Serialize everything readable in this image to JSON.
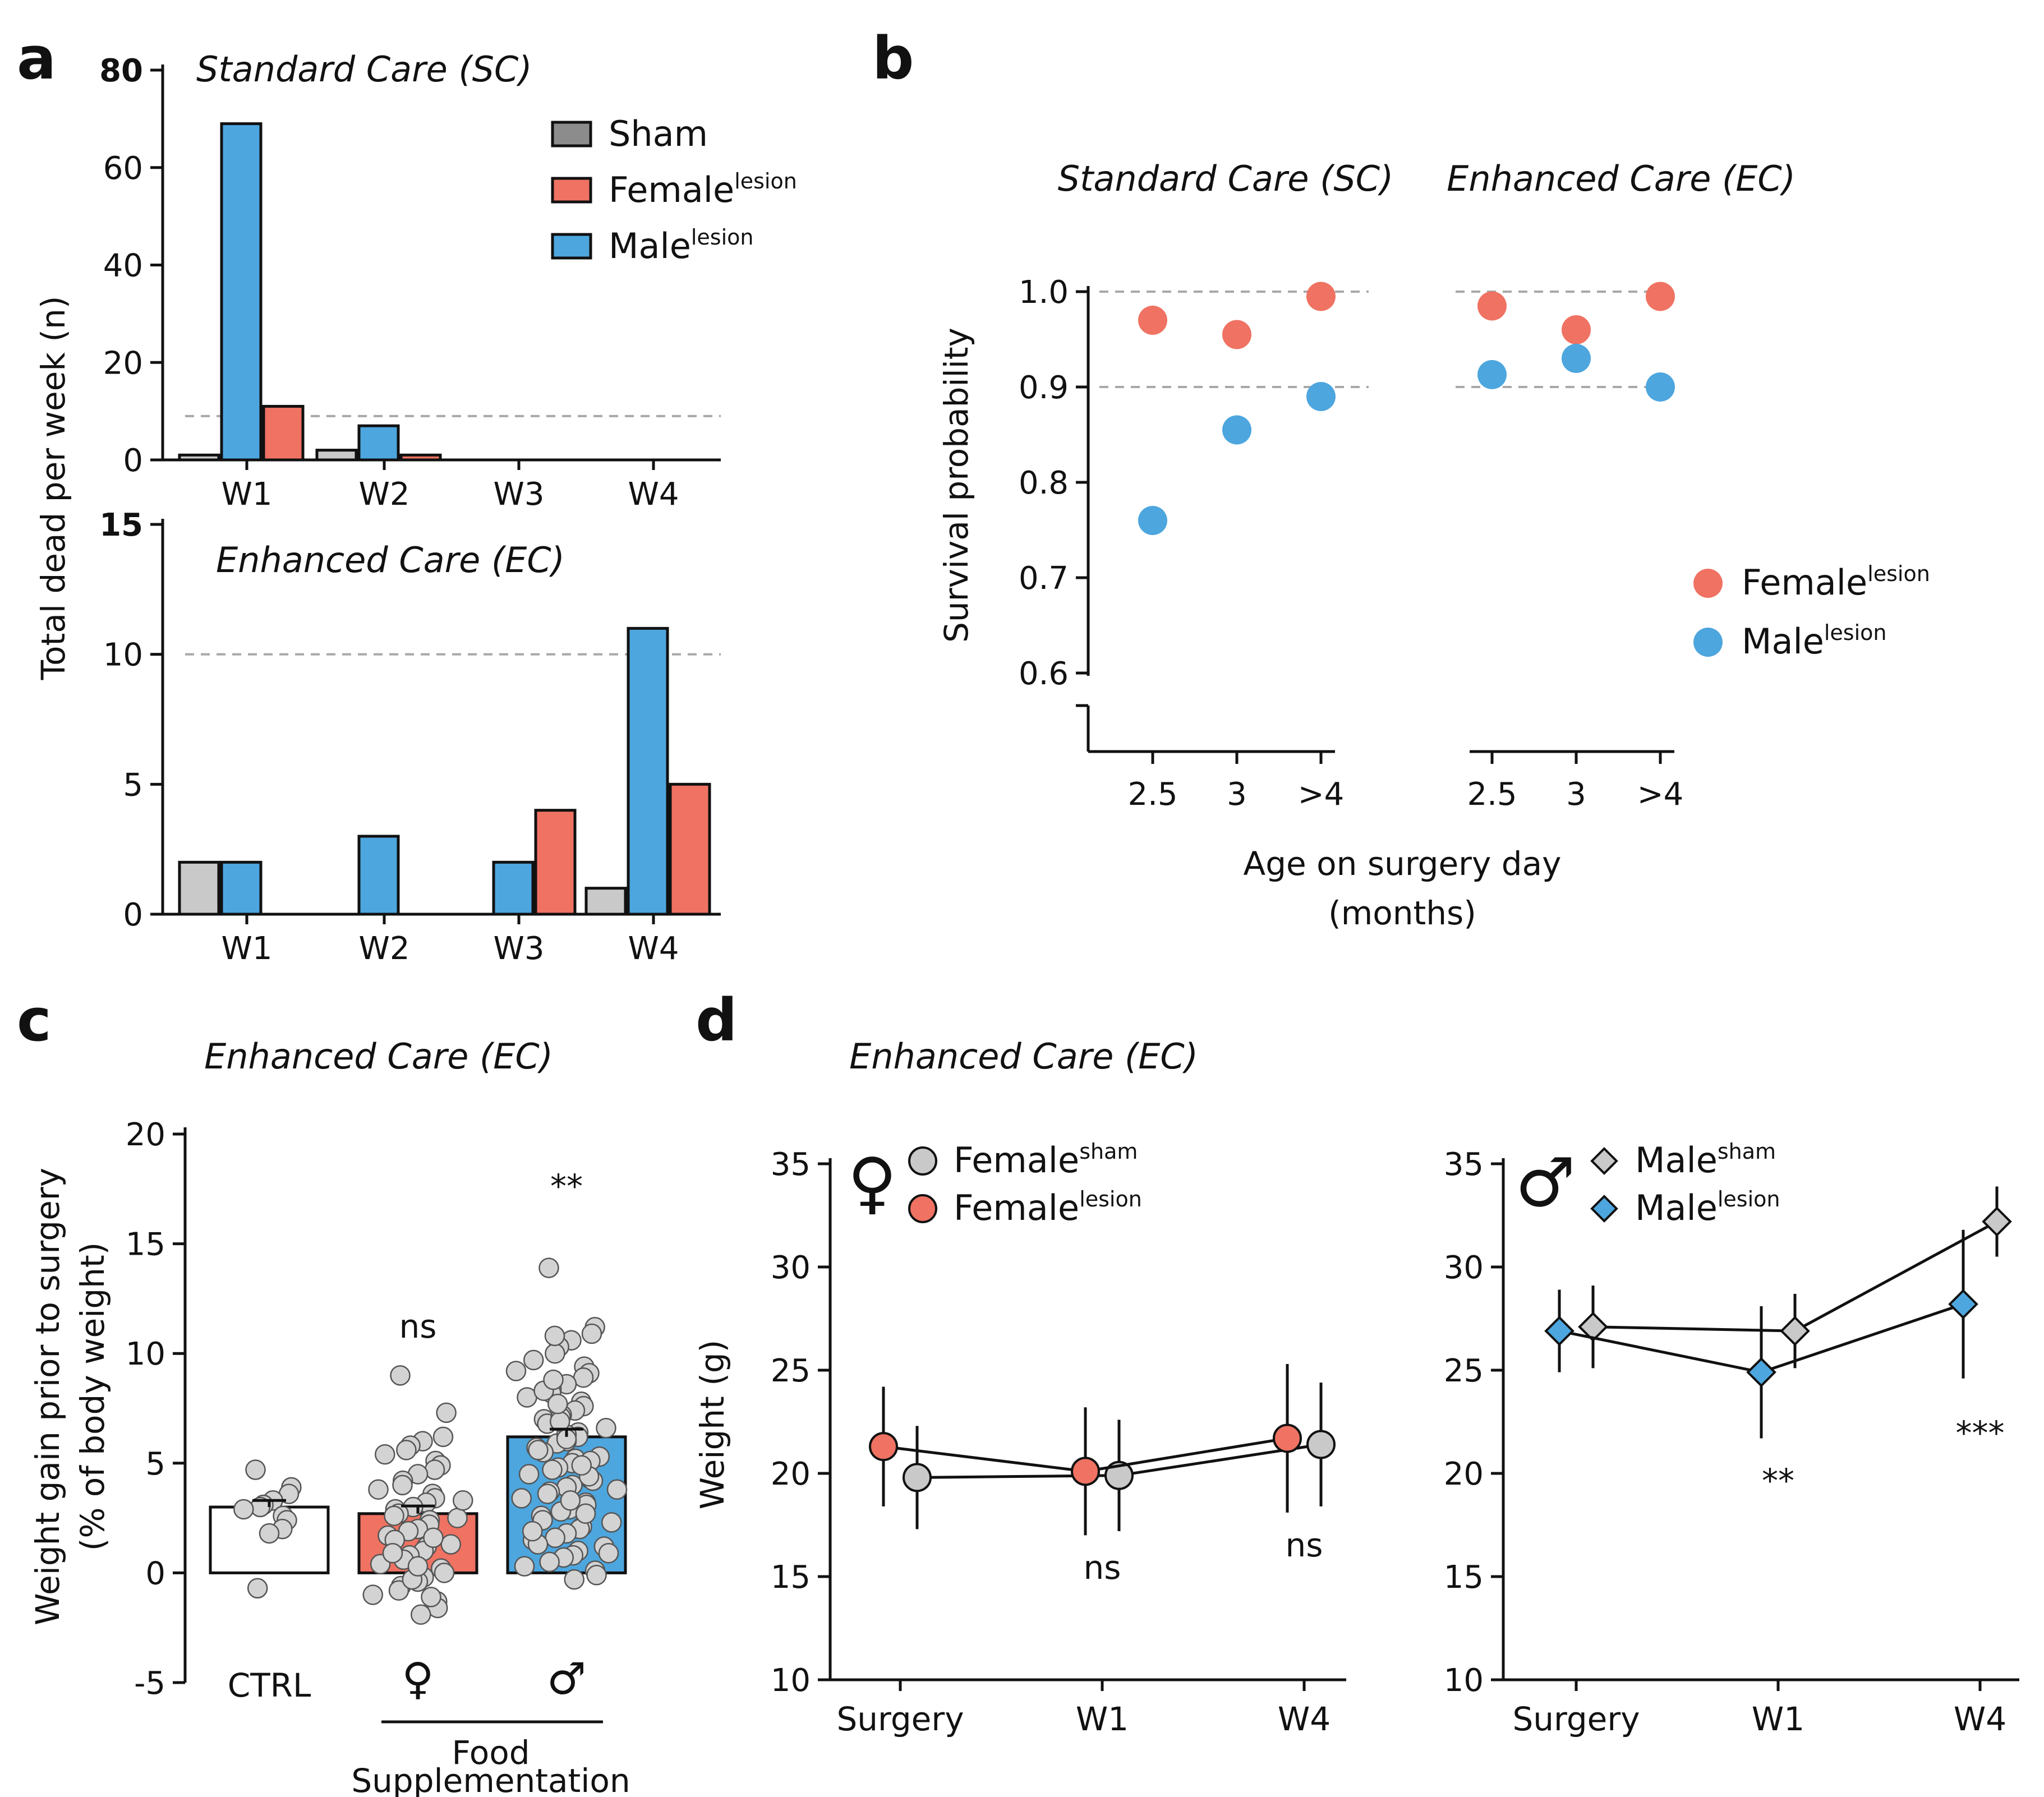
{
  "colors": {
    "sham": "#c9c9c9",
    "female": "#ef7262",
    "male": "#4da6de",
    "ctrl": "#ffffff",
    "dot": "#d3d3d3",
    "sham_legend": "#8c8c8c"
  },
  "panels": {
    "a": "a",
    "b": "b",
    "c": "c",
    "d": "d"
  },
  "chart_data": [
    {
      "id": "a_sc",
      "type": "bar",
      "title": "Standard Care (SC)",
      "ylabel": "Total dead per week (n)",
      "categories": [
        "W1",
        "W2",
        "W3",
        "W4"
      ],
      "series": [
        {
          "name": "Sham",
          "values": [
            1,
            2,
            0,
            0
          ]
        },
        {
          "name": "Female",
          "sup": "lesion",
          "values": [
            11,
            1,
            0,
            0
          ]
        },
        {
          "name": "Male",
          "sup": "lesion",
          "values": [
            69,
            7,
            0,
            0
          ]
        }
      ],
      "ylim": [
        0,
        80
      ],
      "yticks": [
        "0",
        "20",
        "40",
        "60",
        "80"
      ],
      "reference_line": 9
    },
    {
      "id": "a_ec",
      "type": "bar",
      "title": "Enhanced Care (EC)",
      "categories": [
        "W1",
        "W2",
        "W3",
        "W4"
      ],
      "series": [
        {
          "name": "Sham",
          "values": [
            2,
            0,
            0,
            1
          ]
        },
        {
          "name": "Female",
          "values": [
            0,
            0,
            4,
            5
          ]
        },
        {
          "name": "Male",
          "values": [
            2,
            3,
            2,
            11
          ]
        }
      ],
      "ylim": [
        0,
        15
      ],
      "yticks": [
        "0",
        "5",
        "10",
        "15"
      ],
      "reference_line": 10
    },
    {
      "id": "b",
      "type": "scatter",
      "titles": [
        "Standard Care (SC)",
        "Enhanced Care (EC)"
      ],
      "ylabel": "Survival probability",
      "xlabel": "Age on surgery day",
      "xlabel2": "(months)",
      "categories": [
        "2.5",
        "3",
        ">4"
      ],
      "yticks": [
        "0.6",
        "0.7",
        "0.8",
        "0.9",
        "1.0"
      ],
      "ylim": [
        0.6,
        1.0
      ],
      "reference_lines": [
        1.0,
        0.9
      ],
      "series": [
        {
          "name": "Female",
          "sup": "lesion",
          "sc": [
            0.97,
            0.955,
            0.995
          ],
          "ec": [
            0.985,
            0.96,
            0.995
          ]
        },
        {
          "name": "Male",
          "sup": "lesion",
          "sc": [
            0.76,
            0.855,
            0.89
          ],
          "ec": [
            0.913,
            0.93,
            0.9
          ]
        }
      ]
    },
    {
      "id": "c",
      "type": "bar",
      "title": "Enhanced Care (EC)",
      "ylabel": "Weight gain prior to surgery",
      "ylabel2": "(% of body weight)",
      "categories": [
        "CTRL",
        "♀",
        "♂"
      ],
      "group_label": [
        "Food",
        "Supplementation"
      ],
      "means": [
        3.0,
        2.7,
        6.2
      ],
      "sems": [
        0.3,
        0.35,
        0.35
      ],
      "significance": [
        "",
        "ns",
        "**"
      ],
      "ylim": [
        -5,
        20
      ],
      "yticks": [
        "-5",
        "0",
        "5",
        "10",
        "15",
        "20"
      ],
      "points": [
        [
          4.7,
          3.9,
          3.6,
          3.3,
          3.1,
          3.0,
          2.9,
          2.6,
          2.4,
          2.0,
          1.8,
          -0.7
        ],
        [
          9.0,
          7.3,
          6.2,
          6.0,
          5.8,
          5.6,
          5.4,
          5.1,
          4.9,
          4.7,
          4.5,
          4.2,
          4.0,
          3.8,
          3.6,
          3.4,
          3.2,
          3.0,
          2.9,
          2.7,
          2.5,
          2.4,
          2.2,
          2.0,
          1.9,
          1.7,
          1.5,
          1.3,
          1.2,
          1.0,
          0.8,
          0.6,
          0.4,
          0.2,
          0.0,
          -0.2,
          -0.4,
          -0.6,
          -0.8,
          -1.0,
          -1.3,
          -1.6,
          -1.9,
          -0.3,
          0.9,
          2.6,
          3.3,
          1.6,
          -1.1,
          0.3
        ],
        [
          13.9,
          11.2,
          10.9,
          10.6,
          10.3,
          10.0,
          9.7,
          9.4,
          9.1,
          8.9,
          8.6,
          8.4,
          8.2,
          8.0,
          7.8,
          7.6,
          7.4,
          7.2,
          7.0,
          6.8,
          6.6,
          6.4,
          6.2,
          6.0,
          5.9,
          5.7,
          5.5,
          5.3,
          5.2,
          5.0,
          4.8,
          4.7,
          4.5,
          4.3,
          4.2,
          4.0,
          3.9,
          3.7,
          3.6,
          3.4,
          3.2,
          3.1,
          2.9,
          2.8,
          2.6,
          2.4,
          2.3,
          2.1,
          2.0,
          1.8,
          1.6,
          1.5,
          1.3,
          1.2,
          1.0,
          0.8,
          0.7,
          0.5,
          0.3,
          0.1,
          -0.1,
          -0.3,
          6.3,
          7.1,
          8.3,
          9.2,
          5.1,
          4.4,
          3.3,
          6.9,
          7.7,
          5.6,
          3.8,
          2.7,
          4.9,
          6.1,
          8.8,
          10.8,
          1.9,
          0.9
        ]
      ]
    },
    {
      "id": "d_female",
      "type": "line",
      "title": "Enhanced Care (EC)",
      "ylabel": "Weight  (g)",
      "categories": [
        "Surgery",
        "W1",
        "W4"
      ],
      "symbol": "♀",
      "ylim": [
        10,
        35
      ],
      "yticks": [
        "10",
        "15",
        "20",
        "25",
        "30",
        "35"
      ],
      "series": [
        {
          "name": "Female",
          "sup": "sham",
          "mean": [
            19.8,
            19.9,
            21.4
          ],
          "err": [
            2.5,
            2.7,
            3.0
          ]
        },
        {
          "name": "Female",
          "sup": "lesion",
          "mean": [
            21.3,
            20.1,
            21.7
          ],
          "err": [
            2.9,
            3.1,
            3.6
          ]
        }
      ],
      "significance": [
        "",
        "ns",
        "ns"
      ]
    },
    {
      "id": "d_male",
      "type": "line",
      "categories": [
        "Surgery",
        "W1",
        "W4"
      ],
      "symbol": "♂",
      "ylim": [
        10,
        35
      ],
      "yticks": [
        "10",
        "15",
        "20",
        "25",
        "30",
        "35"
      ],
      "series": [
        {
          "name": "Male",
          "sup": "sham",
          "mean": [
            27.1,
            26.9,
            32.2
          ],
          "err": [
            2.0,
            1.8,
            1.7
          ]
        },
        {
          "name": "Male",
          "sup": "lesion",
          "mean": [
            26.9,
            24.9,
            28.2
          ],
          "err": [
            2.0,
            3.2,
            3.6
          ]
        }
      ],
      "significance": [
        "",
        "**",
        "***"
      ]
    }
  ]
}
